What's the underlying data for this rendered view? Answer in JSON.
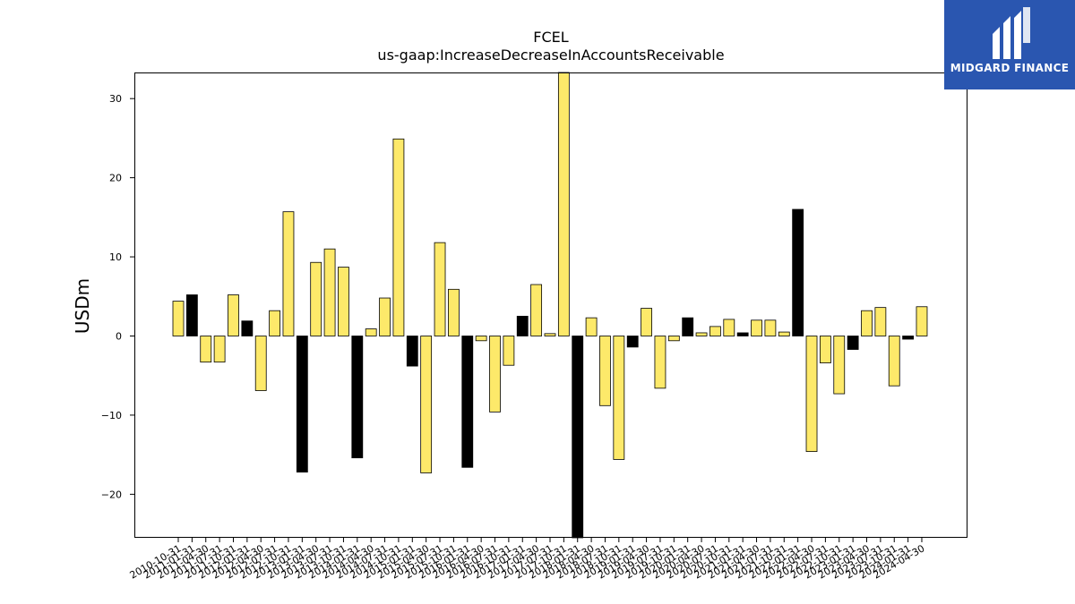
{
  "brand": {
    "name": "MIDGARD FINANCE",
    "logo_icon": "midgard-logo-icon",
    "color": "#2a56b0"
  },
  "chart_data": {
    "type": "bar",
    "title": "FCEL",
    "subtitle": "us-gaap:IncreaseDecreaseInAccountsReceivable",
    "xlabel": "",
    "ylabel": "USDm",
    "ylim": [
      -25.5,
      33.3
    ],
    "yticks": [
      -20,
      -10,
      0,
      10,
      20,
      30
    ],
    "grid": false,
    "colors": {
      "quarterly": "#fde96a",
      "annual": "#000000"
    },
    "categories": [
      "2010-10-31",
      "2011-01-31",
      "2011-04-30",
      "2011-07-31",
      "2011-10-31",
      "2012-01-31",
      "2012-04-30",
      "2012-07-31",
      "2012-10-31",
      "2013-01-31",
      "2013-04-30",
      "2013-07-31",
      "2013-10-31",
      "2014-01-31",
      "2014-04-30",
      "2014-07-31",
      "2014-10-31",
      "2015-01-31",
      "2015-04-30",
      "2015-07-31",
      "2015-10-31",
      "2016-01-31",
      "2016-04-30",
      "2016-07-31",
      "2016-10-31",
      "2017-01-31",
      "2017-04-30",
      "2017-07-31",
      "2017-10-31",
      "2018-01-31",
      "2018-04-30",
      "2018-07-31",
      "2018-10-31",
      "2019-01-31",
      "2019-04-30",
      "2019-07-31",
      "2019-10-31",
      "2020-01-31",
      "2020-04-30",
      "2020-07-31",
      "2020-10-31",
      "2021-01-31",
      "2021-04-30",
      "2021-07-31",
      "2021-10-31",
      "2022-01-31",
      "2022-04-30",
      "2022-07-31",
      "2022-10-31",
      "2023-01-31",
      "2023-04-30",
      "2023-07-31",
      "2023-10-31",
      "2024-01-31",
      "2024-04-30"
    ],
    "values": [
      4.4,
      5.2,
      -3.3,
      -3.3,
      5.2,
      1.9,
      -6.9,
      3.2,
      15.7,
      -17.2,
      9.3,
      11.0,
      8.7,
      -15.4,
      0.9,
      4.8,
      24.9,
      -3.8,
      -17.3,
      11.8,
      5.9,
      -16.6,
      -0.6,
      -9.6,
      -3.7,
      2.5,
      6.5,
      0.3,
      33.3,
      -25.5,
      2.3,
      -8.8,
      -15.6,
      -1.4,
      3.5,
      -6.6,
      -0.6,
      2.3,
      0.4,
      1.2,
      2.1,
      0.4,
      2.0,
      2.0,
      0.5,
      16.0,
      -14.6,
      -3.4,
      -7.3,
      -1.7,
      3.2,
      3.6,
      -6.3,
      -0.4,
      3.7
    ],
    "annual": [
      false,
      true,
      false,
      false,
      false,
      true,
      false,
      false,
      false,
      true,
      false,
      false,
      false,
      true,
      false,
      false,
      false,
      true,
      false,
      false,
      false,
      true,
      false,
      false,
      false,
      true,
      false,
      false,
      false,
      true,
      false,
      false,
      false,
      true,
      false,
      false,
      false,
      true,
      false,
      false,
      false,
      true,
      false,
      false,
      false,
      true,
      false,
      false,
      false,
      true,
      false,
      false,
      false,
      true,
      false
    ]
  }
}
